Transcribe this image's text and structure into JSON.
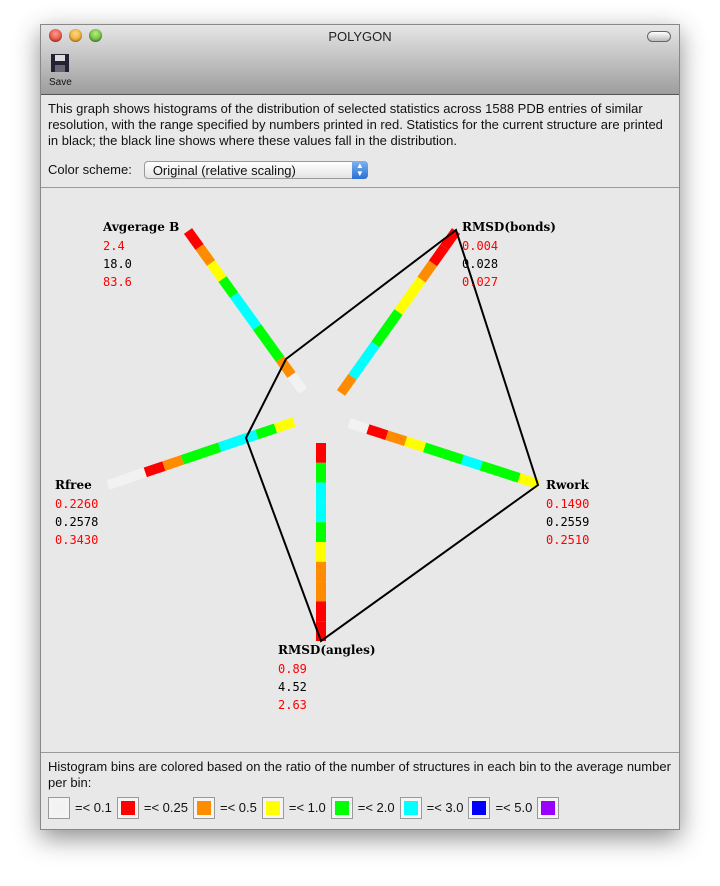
{
  "window": {
    "title": "POLYGON",
    "toolbar": {
      "save_label": "Save"
    }
  },
  "description": "This graph shows histograms of the distribution of selected statistics across 1588 PDB entries of similar resolution, with the range specified by numbers printed in red.  Statistics for the current structure are printed in black; the black line shows where these values fall in the distribution.",
  "color_scheme": {
    "label": "Color scheme:",
    "selected": "Original (relative scaling)"
  },
  "axes": [
    {
      "label": "Avgerage B",
      "min": "2.4",
      "current": "18.0",
      "max": "83.6",
      "bins": [
        "#f2f2f2",
        "#ff8c00",
        "#00ff00",
        "#00ff00",
        "#00ffff",
        "#00ffff",
        "#00ff00",
        "#ffff00",
        "#ff8c00",
        "#ff0000"
      ]
    },
    {
      "label": "RMSD(bonds)",
      "min": "0.004",
      "current": "0.028",
      "max": "0.027",
      "bins": [
        "#ff8c00",
        "#00ffff",
        "#00ffff",
        "#00ff00",
        "#00ff00",
        "#ffff00",
        "#ffff00",
        "#ff8c00",
        "#ff0000",
        "#ff0000"
      ]
    },
    {
      "label": "Rwork",
      "min": "0.1490",
      "current": "0.2559",
      "max": "0.2510",
      "bins": [
        "#f2f2f2",
        "#ff0000",
        "#ff8c00",
        "#ffff00",
        "#00ff00",
        "#00ff00",
        "#00ffff",
        "#00ff00",
        "#00ff00",
        "#ffff00"
      ]
    },
    {
      "label": "RMSD(angles)",
      "min": "0.89",
      "current": "4.52",
      "max": "2.63",
      "bins": [
        "#ff0000",
        "#00ff00",
        "#00ffff",
        "#00ffff",
        "#00ff00",
        "#ffff00",
        "#ff8c00",
        "#ff8c00",
        "#ff0000",
        "#ff0000"
      ]
    },
    {
      "label": "Rfree",
      "min": "0.2260",
      "current": "0.2578",
      "max": "0.3430",
      "bins": [
        "#ffff00",
        "#00ff00",
        "#00ffff",
        "#00ffff",
        "#00ff00",
        "#00ff00",
        "#ff8c00",
        "#ff0000",
        "#f2f2f2",
        "#f2f2f2"
      ]
    }
  ],
  "legend": {
    "text": "Histogram bins are colored based on the ratio of the number of structures in each bin to the average number per bin:",
    "items": [
      {
        "color": "#f2f2f2",
        "label": "=< 0.1"
      },
      {
        "color": "#ff0000",
        "label": "=< 0.25"
      },
      {
        "color": "#ff8c00",
        "label": "=< 0.5"
      },
      {
        "color": "#ffff00",
        "label": "=< 1.0"
      },
      {
        "color": "#00ff00",
        "label": "=< 2.0"
      },
      {
        "color": "#00ffff",
        "label": "=< 3.0"
      },
      {
        "color": "#0000ff",
        "label": "=< 5.0"
      },
      {
        "color": "#9900ff",
        "label": ""
      }
    ]
  },
  "colors": {
    "min_max": "#ff0000",
    "current": "#000000"
  }
}
